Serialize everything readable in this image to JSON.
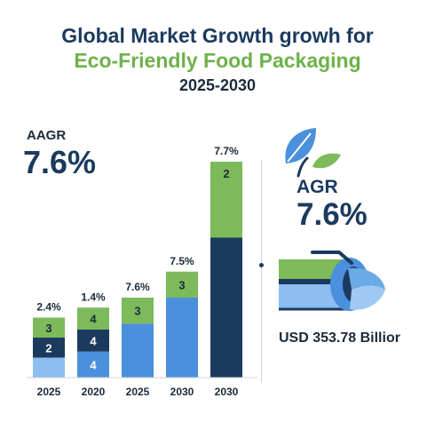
{
  "header": {
    "title_line1": "Global Market Growth growh for",
    "title_line2": "Eco-Friendly Food Packaging",
    "title_line3": "2025-2030"
  },
  "left_stat": {
    "label": "AAGR",
    "value": "7.6%"
  },
  "right_stat": {
    "label": "AGR",
    "value": "7.6%"
  },
  "market_value": "USD 353.78 Billior",
  "icons": {
    "leaf": "leaf-icon",
    "packaging": "packaging-roll-icon"
  },
  "colors": {
    "dark_blue": "#1b3a5e",
    "mid_blue": "#4a90dc",
    "light_blue": "#8dbef0",
    "green": "#7cba5a",
    "light_green": "#9fd07a"
  },
  "chart_data": {
    "type": "bar",
    "stacked": true,
    "categories": [
      "2025",
      "2020",
      "2025",
      "2030",
      "2030"
    ],
    "top_labels": [
      "2.4%",
      "1.4%",
      "7.6%",
      "7.5%",
      "7.7%"
    ],
    "bars": [
      {
        "segments": [
          {
            "value": 1,
            "label": "",
            "color": "#8dbef0"
          },
          {
            "value": 1,
            "label": "2",
            "color": "#1b3a5e"
          },
          {
            "value": 1,
            "label": "3",
            "color": "#7cba5a"
          }
        ]
      },
      {
        "segments": [
          {
            "value": 1.3,
            "label": "4",
            "color": "#4a90dc"
          },
          {
            "value": 1.1,
            "label": "4",
            "color": "#1b3a5e"
          },
          {
            "value": 1.1,
            "label": "4",
            "color": "#7cba5a"
          }
        ]
      },
      {
        "segments": [
          {
            "value": 2.7,
            "label": "",
            "color": "#4a90dc"
          },
          {
            "value": 1.3,
            "label": "3",
            "color": "#7cba5a"
          }
        ]
      },
      {
        "segments": [
          {
            "value": 4.0,
            "label": "",
            "color": "#4a90dc"
          },
          {
            "value": 1.3,
            "label": "3",
            "color": "#7cba5a"
          }
        ]
      },
      {
        "segments": [
          {
            "value": 7.0,
            "label": "",
            "color": "#1b3a5e"
          },
          {
            "value": 3.8,
            "label": "2",
            "color": "#7cba5a"
          }
        ]
      }
    ]
  }
}
